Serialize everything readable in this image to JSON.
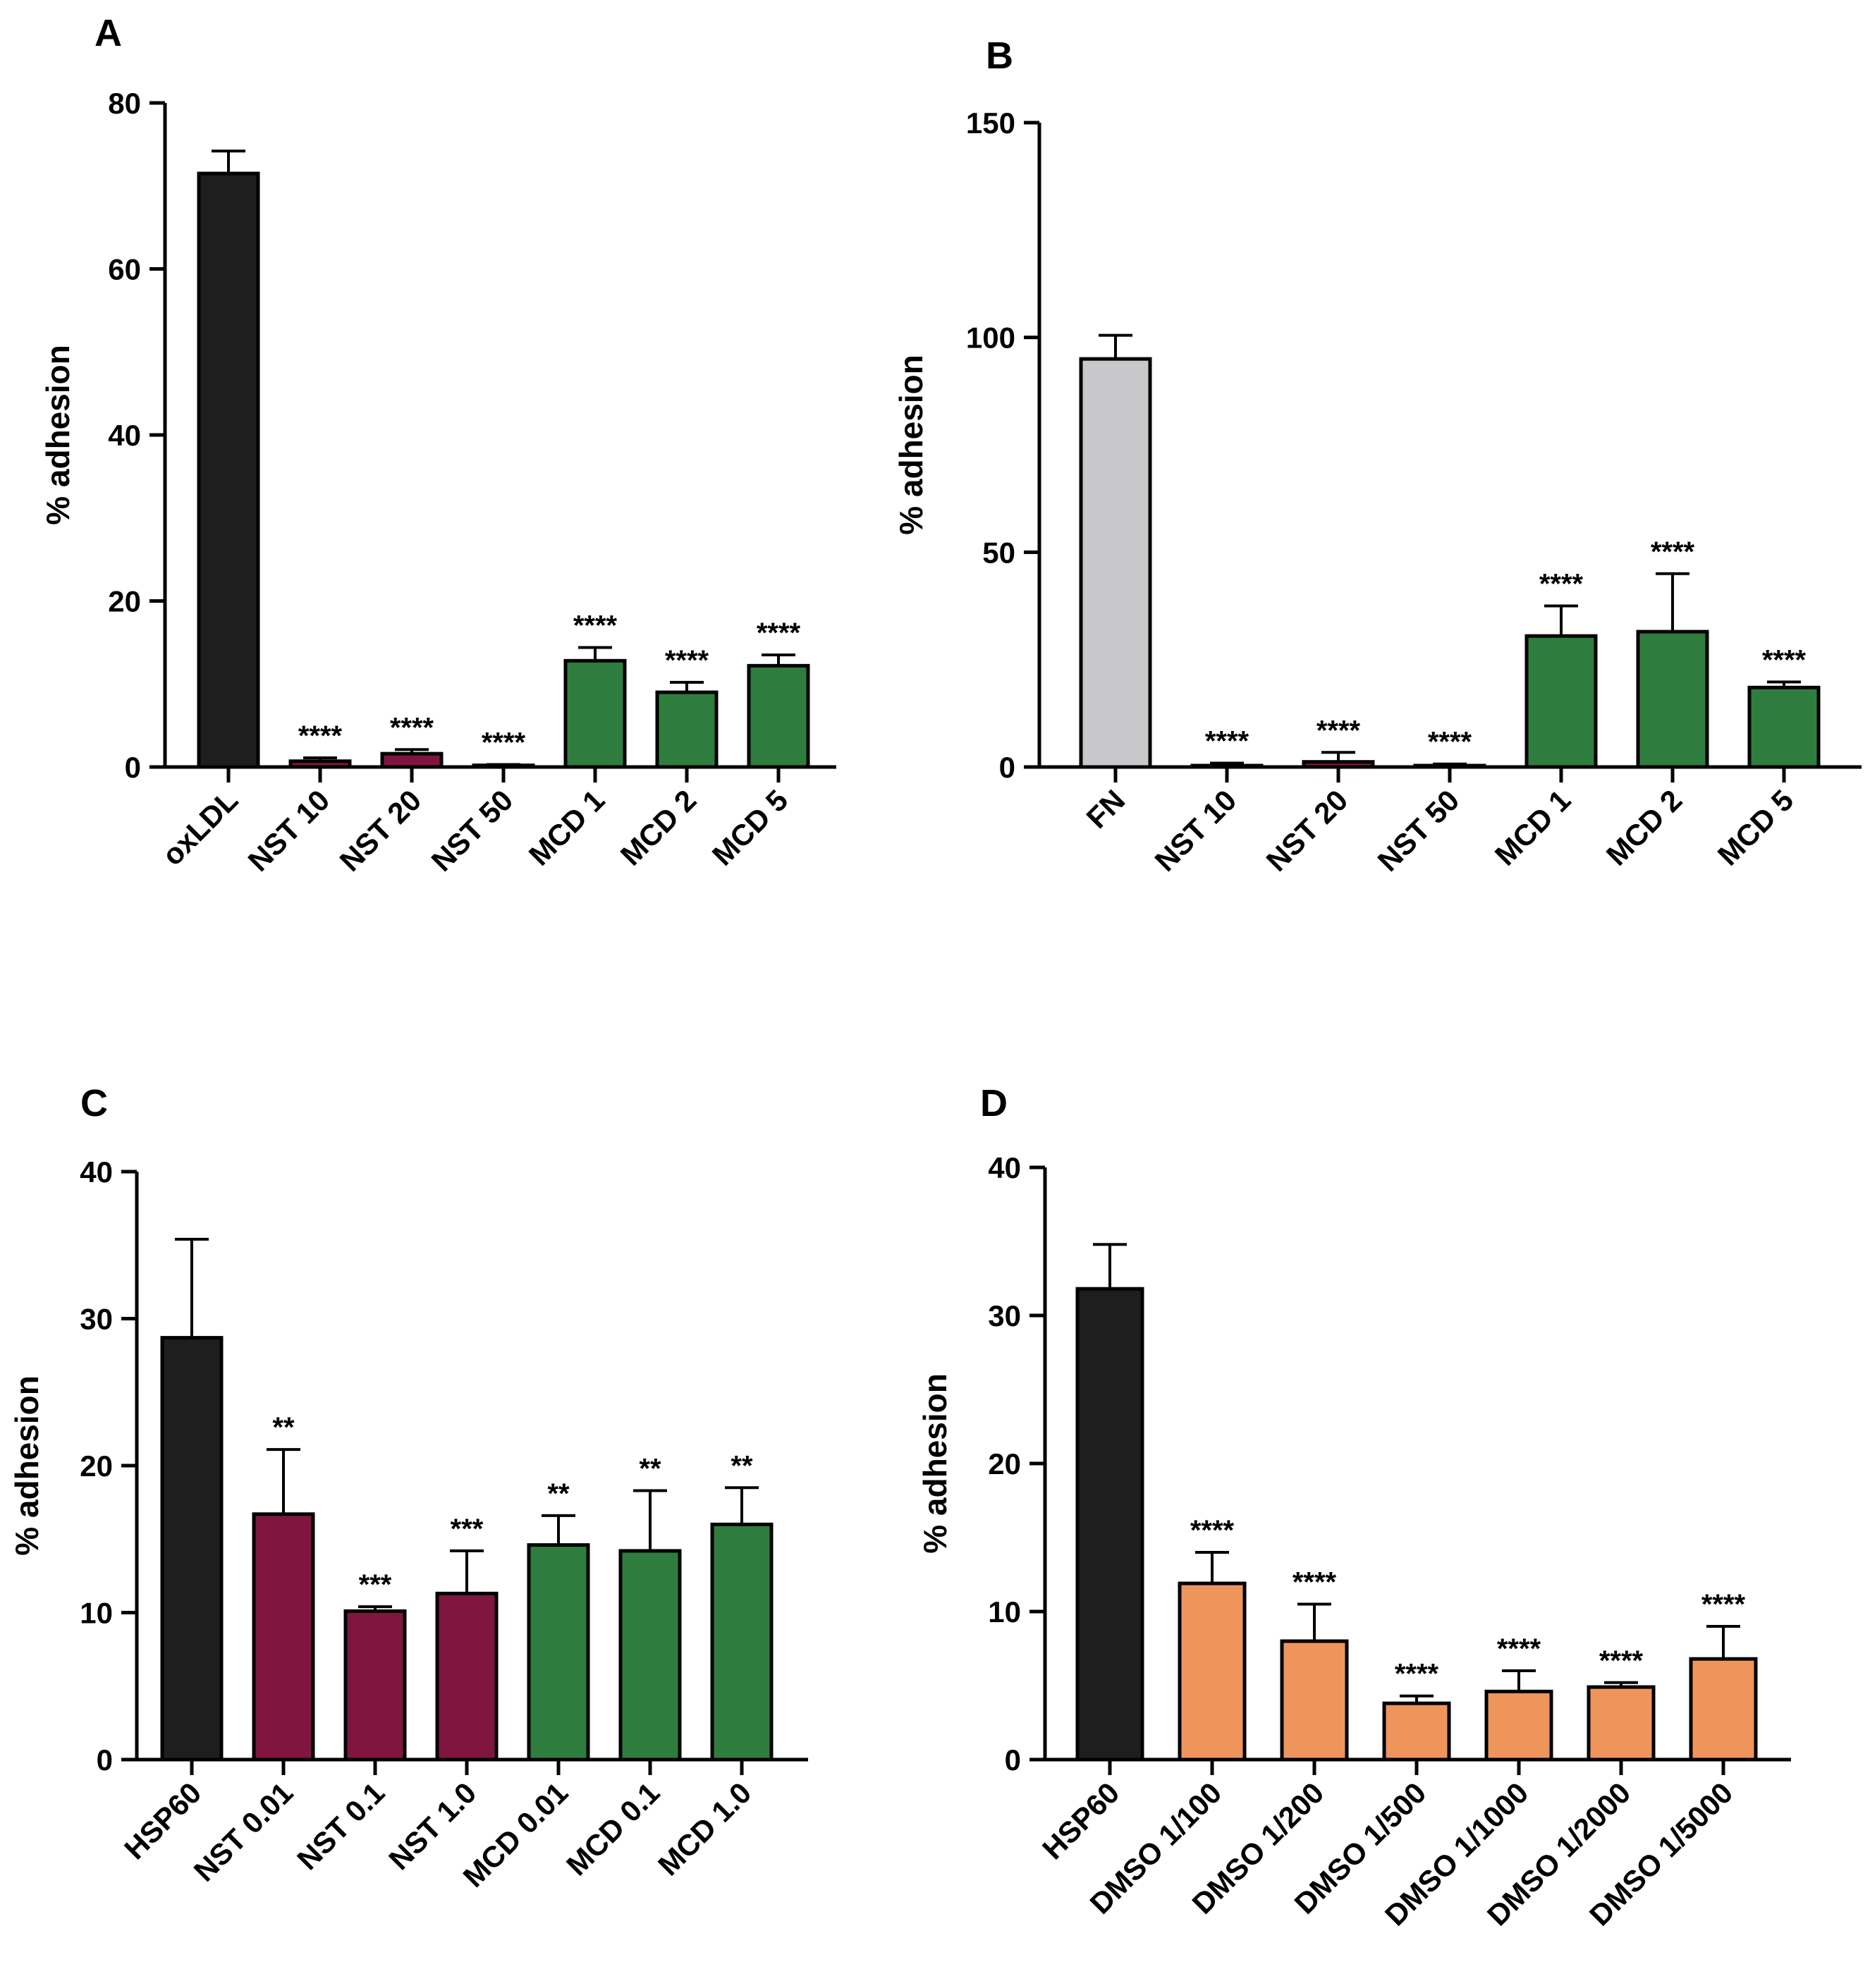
{
  "figure": {
    "domain": "multi-panel bar chart"
  },
  "colors": {
    "black": "#1e1e1e",
    "gray": "#c8c8ca",
    "crimson": "#80163f",
    "green": "#2f7d3e",
    "orange": "#ef955c"
  },
  "chart_data": [
    {
      "id": "A",
      "type": "bar",
      "panel_label": "A",
      "title": "",
      "xlabel": "",
      "ylabel": "% adhesion",
      "ylim": [
        0,
        80
      ],
      "yticks": [
        0,
        20,
        40,
        60,
        80
      ],
      "categories": [
        "oxLDL",
        "NST 10",
        "NST 20",
        "NST 50",
        "MCD 1",
        "MCD 2",
        "MCD 5"
      ],
      "values": [
        71.5,
        0.7,
        1.6,
        0.2,
        12.8,
        9.0,
        12.2
      ],
      "errors": [
        2.7,
        0.4,
        0.5,
        0.1,
        1.6,
        1.2,
        1.3
      ],
      "bar_colors": [
        "black",
        "crimson",
        "crimson",
        "crimson",
        "green",
        "green",
        "green"
      ],
      "annotations": [
        "",
        "****",
        "****",
        "****",
        "****",
        "****",
        "****"
      ]
    },
    {
      "id": "B",
      "type": "bar",
      "panel_label": "B",
      "title": "",
      "xlabel": "",
      "ylabel": "% adhesion",
      "ylim": [
        0,
        150
      ],
      "yticks": [
        0,
        50,
        100,
        150
      ],
      "categories": [
        "FN",
        "NST 10",
        "NST 20",
        "NST 50",
        "MCD 1",
        "MCD 2",
        "MCD 5"
      ],
      "values": [
        95,
        0.3,
        1.2,
        0.2,
        30.5,
        31.5,
        18.5
      ],
      "errors": [
        5.5,
        0.6,
        2.2,
        0.5,
        7,
        13.5,
        1.3
      ],
      "bar_colors": [
        "gray",
        "crimson",
        "crimson",
        "crimson",
        "green",
        "green",
        "green"
      ],
      "annotations": [
        "",
        "****",
        "****",
        "****",
        "****",
        "****",
        "****"
      ]
    },
    {
      "id": "C",
      "type": "bar",
      "panel_label": "C",
      "title": "",
      "xlabel": "",
      "ylabel": "% adhesion",
      "ylim": [
        0,
        40
      ],
      "yticks": [
        0,
        10,
        20,
        30,
        40
      ],
      "categories": [
        "HSP60",
        "NST 0.01",
        "NST 0.1",
        "NST 1.0",
        "MCD 0.01",
        "MCD 0.1",
        "MCD 1.0"
      ],
      "values": [
        28.7,
        16.7,
        10.1,
        11.3,
        14.6,
        14.2,
        16.0
      ],
      "errors": [
        6.7,
        4.4,
        0.3,
        2.9,
        2.0,
        4.1,
        2.5
      ],
      "bar_colors": [
        "black",
        "crimson",
        "crimson",
        "crimson",
        "green",
        "green",
        "green"
      ],
      "annotations": [
        "",
        "**",
        "***",
        "***",
        "**",
        "**",
        "**"
      ]
    },
    {
      "id": "D",
      "type": "bar",
      "panel_label": "D",
      "title": "",
      "xlabel": "",
      "ylabel": "% adhesion",
      "ylim": [
        0,
        40
      ],
      "yticks": [
        0,
        10,
        20,
        30,
        40
      ],
      "categories": [
        "HSP60",
        "DMSO 1/100",
        "DMSO 1/200",
        "DMSO 1/500",
        "DMSO 1/1000",
        "DMSO 1/2000",
        "DMSO 1/5000"
      ],
      "values": [
        31.8,
        11.9,
        8.0,
        3.8,
        4.6,
        4.9,
        6.8
      ],
      "errors": [
        3.0,
        2.1,
        2.5,
        0.5,
        1.4,
        0.3,
        2.2
      ],
      "bar_colors": [
        "black",
        "orange",
        "orange",
        "orange",
        "orange",
        "orange",
        "orange"
      ],
      "annotations": [
        "",
        "****",
        "****",
        "****",
        "****",
        "****",
        "****"
      ]
    }
  ]
}
